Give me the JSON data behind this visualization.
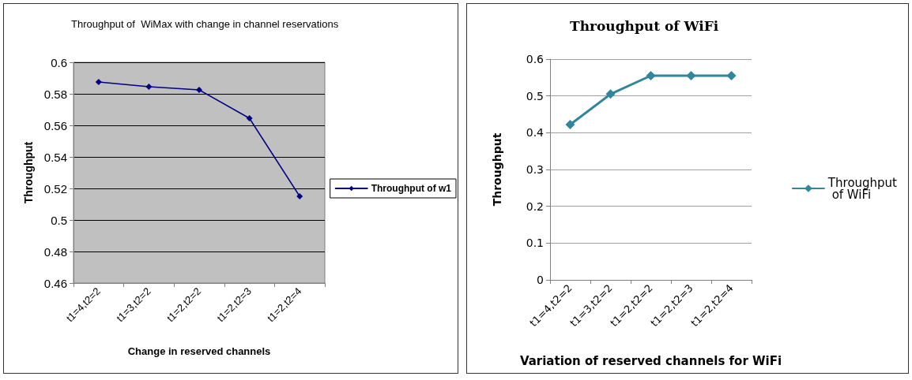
{
  "chart_data": [
    {
      "type": "line",
      "title": "Throughput of  WiMax with change in channel reservations",
      "xlabel": "Change in reserved channels",
      "ylabel": "Throughput",
      "categories": [
        "t1=4,t2=2",
        "t1=3,t2=2",
        "t1=2,t2=2",
        "t1=2,t2=3",
        "t1=2,t2=4"
      ],
      "series": [
        {
          "name": "Throughput of w1",
          "color": "#000080",
          "values": [
            0.5875,
            0.5845,
            0.5825,
            0.5645,
            0.515
          ]
        }
      ],
      "ylim": [
        0.46,
        0.6
      ],
      "yticks": [
        0.46,
        0.48,
        0.5,
        0.52,
        0.54,
        0.56,
        0.58,
        0.6
      ],
      "grid": "y",
      "legend": "right",
      "marker": "diamond",
      "line_style": "solid"
    },
    {
      "type": "line",
      "title": "Throughput of WiFi",
      "xlabel": "Variation of reserved channels for WiFi",
      "ylabel": "Throughput",
      "categories": [
        "t1=4,t2=2",
        "t1=3,t2=2",
        "t1=2,t2=2",
        "t1=2,t2=3",
        "t1=2,t2=4"
      ],
      "series": [
        {
          "name": "Throughput of WiFi",
          "color": "#31859c",
          "values": [
            0.422,
            0.505,
            0.555,
            0.555,
            0.555
          ]
        }
      ],
      "ylim": [
        0,
        0.6
      ],
      "yticks": [
        0,
        0.1,
        0.2,
        0.3,
        0.4,
        0.5,
        0.6
      ],
      "grid": "y",
      "legend": "right",
      "marker": "diamond",
      "line_style": "solid"
    }
  ]
}
